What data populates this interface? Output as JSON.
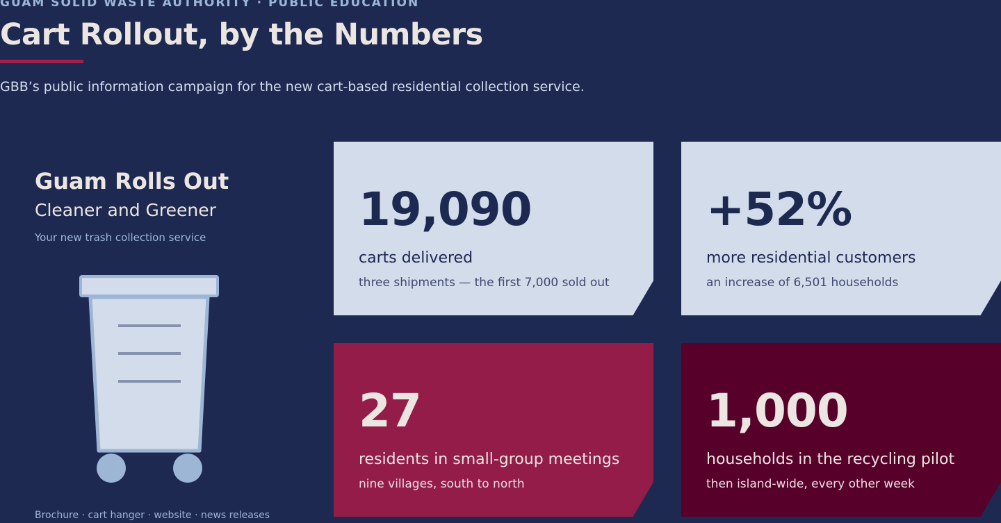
{
  "header": {
    "eyebrow": "GUAM SOLID WASTE AUTHORITY · PUBLIC EDUCATION",
    "title": "Cart Rollout, by the Numbers",
    "subtitle": "GBB’s public information campaign for the new cart-based residential collection service."
  },
  "promo": {
    "heading": "Guam Rolls Out",
    "subheading": "Cleaner and Greener",
    "tagline": "Your new trash collection service",
    "illustration_icon": "trash-cart-icon",
    "channels": "Brochure · cart hanger · website · news releases"
  },
  "stats": [
    {
      "value": "19,090",
      "label": "carts delivered",
      "note": "three shipments — the first 7,000 sold out",
      "color": "#d3dcea"
    },
    {
      "value": "+52%",
      "label": "more residential customers",
      "note": "an increase of 6,501 households",
      "color": "#d3dcea"
    },
    {
      "value": "27",
      "label": "residents in small-group meetings",
      "note": "nine villages, south to north",
      "color": "#931c48"
    },
    {
      "value": "1,000",
      "label": "households in the recycling pilot",
      "note": "then island-wide, every other week",
      "color": "#57002a"
    }
  ],
  "colors": {
    "background": "#1e2952",
    "accent": "#a1214c",
    "light_card": "#d3dcea",
    "crimson_card": "#931c48",
    "wine_card": "#57002a"
  }
}
